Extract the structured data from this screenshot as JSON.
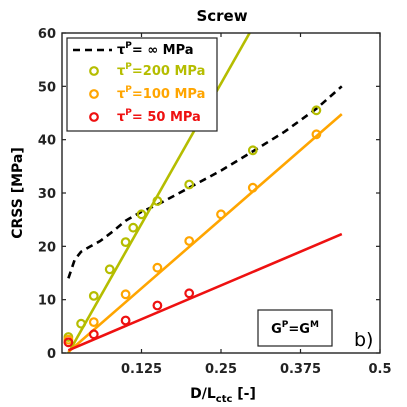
{
  "chart_data": {
    "type": "scatter",
    "title": "Screw",
    "xlabel": "D/L",
    "xlabel_sub": "ctc",
    "xlabel_unit": " [-]",
    "ylabel": "CRSS [MPa]",
    "xlim": [
      0,
      0.5
    ],
    "ylim": [
      0,
      60
    ],
    "xticks": [
      0.125,
      0.25,
      0.375,
      0.5
    ],
    "xtick_labels": [
      "0.125",
      "0.25",
      "0.375",
      "0.5"
    ],
    "yticks": [
      0,
      10,
      20,
      30,
      40,
      50,
      60
    ],
    "ytick_labels": [
      "0",
      "10",
      "20",
      "30",
      "40",
      "50",
      "60"
    ],
    "grid": false,
    "legend_position": "top-left",
    "annotation": {
      "base": "G",
      "sup1": "P",
      "mid": "=G",
      "sup2": "M"
    },
    "panel_label": "b)",
    "series": [
      {
        "legend_base": "τ",
        "legend_sup": "P",
        "legend_rest": "=  ∞ MPa",
        "color": "#000000",
        "style": "dashed",
        "line_x": [
          0.01,
          0.02,
          0.03,
          0.045,
          0.06,
          0.08,
          0.1,
          0.125,
          0.15,
          0.2,
          0.25,
          0.3,
          0.35,
          0.4,
          0.44
        ],
        "line_y": [
          14.0,
          17.5,
          19.0,
          20.0,
          21.0,
          22.8,
          24.8,
          26.5,
          27.8,
          31.0,
          34.2,
          37.8,
          41.5,
          45.8,
          50.0
        ],
        "points_x": [],
        "points_y": []
      },
      {
        "legend_base": "τ",
        "legend_sup": "P",
        "legend_rest": "=200 MPa",
        "color": "#b5bd00",
        "style": "solid",
        "line_x": [
          0.01,
          0.295
        ],
        "line_y": [
          0.0,
          60.0
        ],
        "points_x": [
          0.01,
          0.03,
          0.05,
          0.075,
          0.1,
          0.112,
          0.125,
          0.15,
          0.2,
          0.3,
          0.4
        ],
        "points_y": [
          3.0,
          5.5,
          10.7,
          15.7,
          20.8,
          23.5,
          26.0,
          28.5,
          31.6,
          38.0,
          45.5
        ]
      },
      {
        "legend_base": "τ",
        "legend_sup": "P",
        "legend_rest": "=100 MPa",
        "color": "#ffa500",
        "style": "solid",
        "line_x": [
          0.01,
          0.44
        ],
        "line_y": [
          0.2,
          44.8
        ],
        "points_x": [
          0.01,
          0.05,
          0.1,
          0.15,
          0.2,
          0.25,
          0.3,
          0.4
        ],
        "points_y": [
          2.5,
          5.8,
          11.0,
          16.0,
          21.0,
          26.0,
          31.0,
          41.0
        ]
      },
      {
        "legend_base": "τ",
        "legend_sup": "P",
        "legend_rest": "=  50 MPa",
        "color": "#ee1111",
        "style": "solid",
        "line_x": [
          0.01,
          0.44
        ],
        "line_y": [
          0.5,
          22.3
        ],
        "points_x": [
          0.01,
          0.05,
          0.1,
          0.15,
          0.2
        ],
        "points_y": [
          2.0,
          3.5,
          6.1,
          8.9,
          11.2
        ]
      }
    ]
  }
}
